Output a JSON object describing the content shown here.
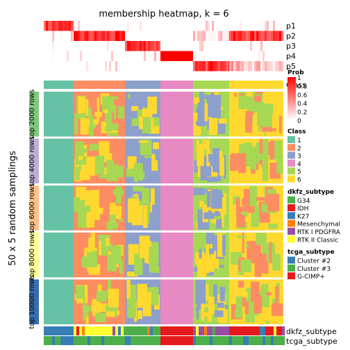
{
  "chart_data": {
    "type": "heatmap",
    "title": "membership heatmap, k = 6",
    "y_outer_label": "50 x 5 random samplings",
    "top_rows": [
      "p1",
      "p2",
      "p3",
      "p4",
      "p5",
      "Prob",
      "Class"
    ],
    "bottom_rows": [
      "dkfz_subtype",
      "tcga_subtype"
    ],
    "row_groups": [
      {
        "label": "top 2000 rows",
        "color": "#7FC97F"
      },
      {
        "label": "top 4000 rows",
        "color": "#BEAED4"
      },
      {
        "label": "top 6000 rows",
        "color": "#FDC086"
      },
      {
        "label": "top 8000 rows",
        "color": "#FFFF99"
      },
      {
        "label": "top 10000 rows",
        "color": "#386CB0"
      }
    ],
    "column_blocks": [
      {
        "class": 1,
        "width": 43
      },
      {
        "class": 2,
        "width": 74
      },
      {
        "class": 3,
        "width": 51
      },
      {
        "class": 4,
        "width": 47
      },
      {
        "class": 5,
        "width": 52
      },
      {
        "class": 6,
        "width": 78
      }
    ],
    "prob_legend": {
      "title": "Prob",
      "ticks": [
        "1",
        "0.8",
        "0.6",
        "0.4",
        "0.2",
        "0"
      ]
    },
    "legends": [
      {
        "title": "Class",
        "items": [
          {
            "label": "1",
            "color": "#66C2A5"
          },
          {
            "label": "2",
            "color": "#FC8D62"
          },
          {
            "label": "3",
            "color": "#8DA0CB"
          },
          {
            "label": "4",
            "color": "#E78AC3"
          },
          {
            "label": "5",
            "color": "#A6D854"
          },
          {
            "label": "6",
            "color": "#FFD92F"
          }
        ]
      },
      {
        "title": "dkfz_subtype",
        "items": [
          {
            "label": "G34",
            "color": "#4DAF4A"
          },
          {
            "label": "IDH",
            "color": "#E41A1C"
          },
          {
            "label": "K27",
            "color": "#377EB8"
          },
          {
            "label": "Mesenchymal",
            "color": "#FF7F00"
          },
          {
            "label": "RTK I PDGFRA",
            "color": "#984EA3"
          },
          {
            "label": "RTK II Classic",
            "color": "#FFFF33"
          }
        ]
      },
      {
        "title": "tcga_subtype",
        "items": [
          {
            "label": "Cluster #2",
            "color": "#377EB8"
          },
          {
            "label": "Cluster #3",
            "color": "#4DAF4A"
          },
          {
            "label": "G-CIMP+",
            "color": "#E41A1C"
          }
        ]
      }
    ],
    "colors": {
      "prob_high": "#FF0000",
      "prob_low": "#FFFFFF"
    }
  }
}
